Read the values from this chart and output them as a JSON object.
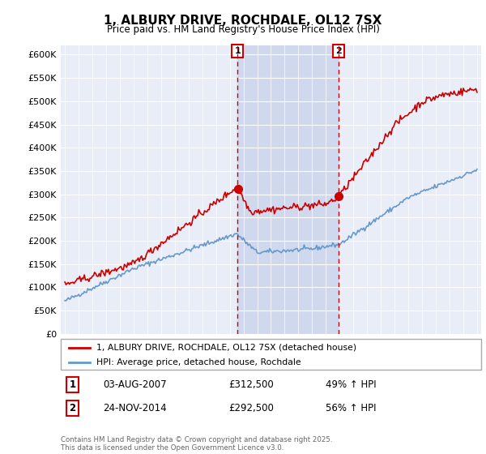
{
  "title": "1, ALBURY DRIVE, ROCHDALE, OL12 7SX",
  "subtitle": "Price paid vs. HM Land Registry's House Price Index (HPI)",
  "ylabel_ticks": [
    "£0",
    "£50K",
    "£100K",
    "£150K",
    "£200K",
    "£250K",
    "£300K",
    "£350K",
    "£400K",
    "£450K",
    "£500K",
    "£550K",
    "£600K"
  ],
  "ytick_values": [
    0,
    50000,
    100000,
    150000,
    200000,
    250000,
    300000,
    350000,
    400000,
    450000,
    500000,
    550000,
    600000
  ],
  "ylim": [
    0,
    620000
  ],
  "background_color": "#e8edf7",
  "marker1": {
    "year": 2007.58,
    "price": 312500,
    "label": "1",
    "pct": "49% ↑ HPI",
    "date_str": "03-AUG-2007"
  },
  "marker2": {
    "year": 2014.9,
    "price": 292500,
    "label": "2",
    "pct": "56% ↑ HPI",
    "date_str": "24-NOV-2014"
  },
  "legend_line1": "1, ALBURY DRIVE, ROCHDALE, OL12 7SX (detached house)",
  "legend_line2": "HPI: Average price, detached house, Rochdale",
  "footnote": "Contains HM Land Registry data © Crown copyright and database right 2025.\nThis data is licensed under the Open Government Licence v3.0.",
  "line_color_red": "#cc0000",
  "line_color_blue": "#6699cc",
  "marker_box_color": "#cc0000",
  "grid_color": "#ffffff",
  "span_color": "#d0d8ee"
}
